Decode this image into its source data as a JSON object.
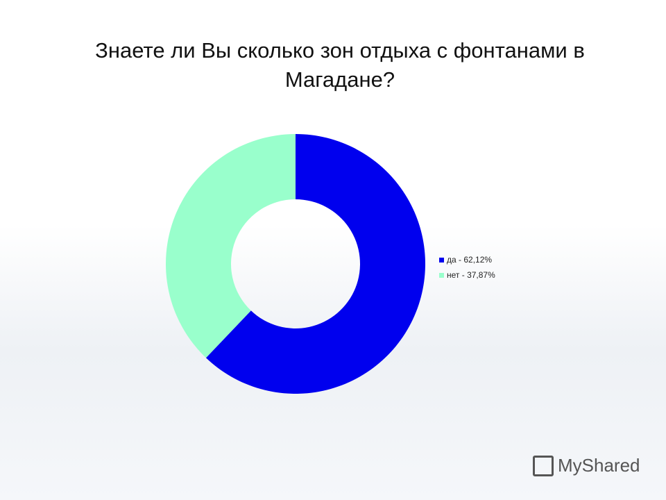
{
  "chart_data": {
    "type": "donut",
    "title": "Знаете ли Вы сколько зон отдыха с фонтанами в Магадане?",
    "categories": [
      "да",
      "нет"
    ],
    "values": [
      62.12,
      37.87
    ],
    "labels": [
      "да - 62,12%",
      "нет  - 37,87%"
    ],
    "colors": [
      "#0000ee",
      "#99ffcc"
    ],
    "legend_position": "right"
  },
  "watermark": "MyShared"
}
